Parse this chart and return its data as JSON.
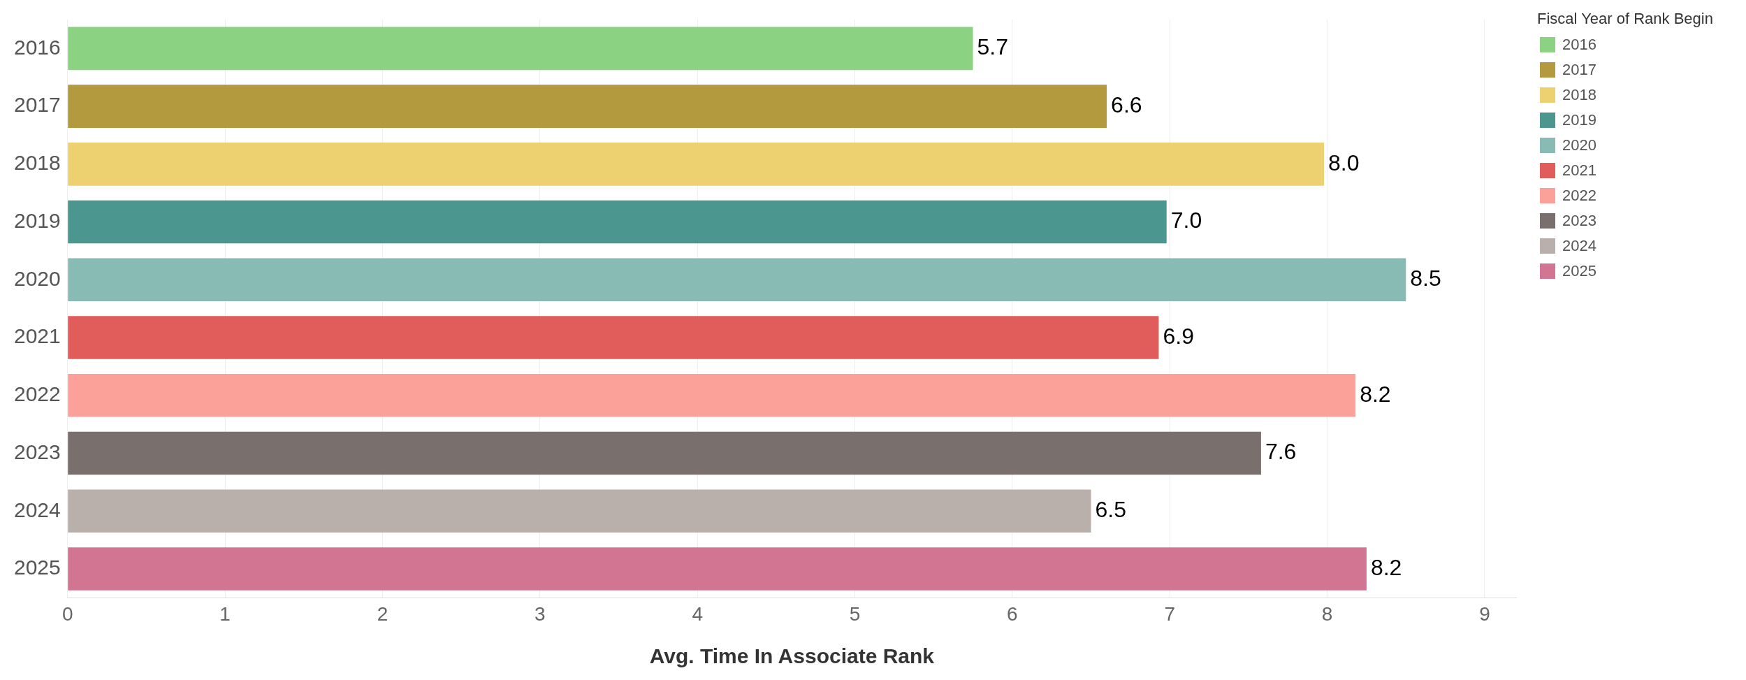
{
  "chart_data": {
    "type": "bar",
    "orientation": "horizontal",
    "xlabel": "Avg. Time In Associate Rank",
    "legend_title": "Fiscal Year of Rank Begin",
    "categories": [
      "2016",
      "2017",
      "2018",
      "2019",
      "2020",
      "2021",
      "2022",
      "2023",
      "2024",
      "2025"
    ],
    "series": [
      {
        "name": "2016",
        "color": "#8bd383",
        "values": [
          5.75,
          null,
          null,
          null,
          null,
          null,
          null,
          null,
          null,
          null
        ],
        "value_labels": [
          "5.7",
          null,
          null,
          null,
          null,
          null,
          null,
          null,
          null,
          null
        ]
      },
      {
        "name": "2017",
        "color": "#b39a3e",
        "values": [
          null,
          6.6,
          null,
          null,
          null,
          null,
          null,
          null,
          null,
          null
        ],
        "value_labels": [
          null,
          "6.6",
          null,
          null,
          null,
          null,
          null,
          null,
          null,
          null
        ]
      },
      {
        "name": "2018",
        "color": "#edd170",
        "values": [
          null,
          null,
          7.98,
          null,
          null,
          null,
          null,
          null,
          null,
          null
        ],
        "value_labels": [
          null,
          null,
          "8.0",
          null,
          null,
          null,
          null,
          null,
          null,
          null
        ]
      },
      {
        "name": "2019",
        "color": "#4b968f",
        "values": [
          null,
          null,
          null,
          6.98,
          null,
          null,
          null,
          null,
          null,
          null
        ],
        "value_labels": [
          null,
          null,
          null,
          "7.0",
          null,
          null,
          null,
          null,
          null,
          null
        ]
      },
      {
        "name": "2020",
        "color": "#87bbb4",
        "values": [
          null,
          null,
          null,
          null,
          8.5,
          null,
          null,
          null,
          null,
          null
        ],
        "value_labels": [
          null,
          null,
          null,
          null,
          "8.5",
          null,
          null,
          null,
          null,
          null
        ]
      },
      {
        "name": "2021",
        "color": "#e05d5b",
        "values": [
          null,
          null,
          null,
          null,
          null,
          6.93,
          null,
          null,
          null,
          null
        ],
        "value_labels": [
          null,
          null,
          null,
          null,
          null,
          "6.9",
          null,
          null,
          null,
          null
        ]
      },
      {
        "name": "2022",
        "color": "#fca19a",
        "values": [
          null,
          null,
          null,
          null,
          null,
          null,
          8.18,
          null,
          null,
          null
        ],
        "value_labels": [
          null,
          null,
          null,
          null,
          null,
          null,
          "8.2",
          null,
          null,
          null
        ]
      },
      {
        "name": "2023",
        "color": "#796f6c",
        "values": [
          null,
          null,
          null,
          null,
          null,
          null,
          null,
          7.58,
          null,
          null
        ],
        "value_labels": [
          null,
          null,
          null,
          null,
          null,
          null,
          null,
          "7.6",
          null,
          null
        ]
      },
      {
        "name": "2024",
        "color": "#bab0ab",
        "values": [
          null,
          null,
          null,
          null,
          null,
          null,
          null,
          null,
          6.5,
          null
        ],
        "value_labels": [
          null,
          null,
          null,
          null,
          null,
          null,
          null,
          null,
          "6.5",
          null
        ]
      },
      {
        "name": "2025",
        "color": "#d27593",
        "values": [
          null,
          null,
          null,
          null,
          null,
          null,
          null,
          null,
          null,
          8.25
        ],
        "value_labels": [
          null,
          null,
          null,
          null,
          null,
          null,
          null,
          null,
          null,
          "8.2"
        ]
      }
    ],
    "xlim": [
      0,
      9.2
    ],
    "xticks": [
      0,
      1,
      2,
      3,
      4,
      5,
      6,
      7,
      8,
      9
    ],
    "grid": "x",
    "legend": "top right"
  }
}
